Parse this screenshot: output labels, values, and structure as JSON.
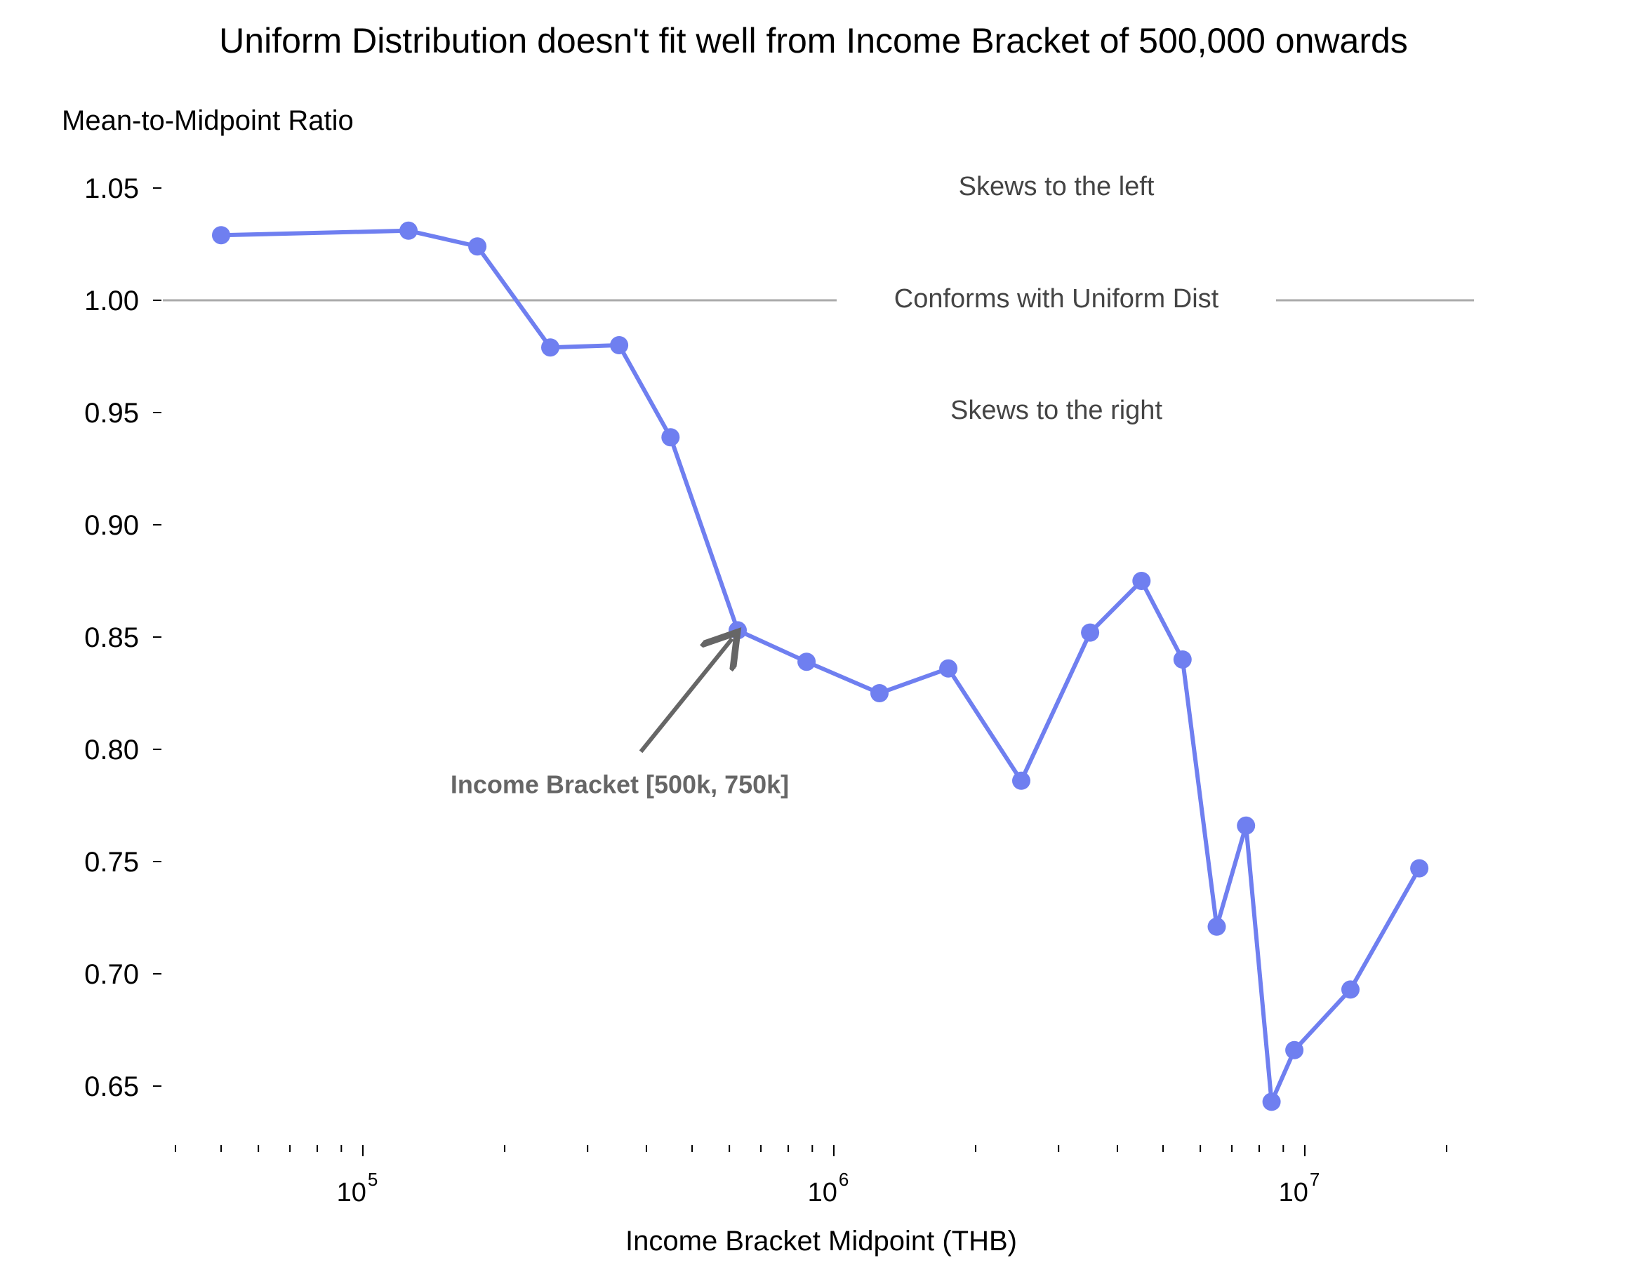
{
  "chart_data": {
    "type": "line",
    "title": "Uniform Distribution doesn't fit well from Income Bracket of 500,000 onwards",
    "xlabel": "Income Bracket Midpoint (THB)",
    "ylabel": "Mean-to-Midpoint Ratio",
    "x_scale": "log",
    "xlim": [
      40000,
      22000000
    ],
    "ylim": [
      0.625,
      1.068
    ],
    "grid": false,
    "legend": "none",
    "line_color": "#6f7ff0",
    "reference_line_color": "#aaaaaa",
    "yticks": [
      {
        "value": 0.65,
        "label": "0.65"
      },
      {
        "value": 0.7,
        "label": "0.70"
      },
      {
        "value": 0.75,
        "label": "0.75"
      },
      {
        "value": 0.8,
        "label": "0.80"
      },
      {
        "value": 0.85,
        "label": "0.85"
      },
      {
        "value": 0.9,
        "label": "0.90"
      },
      {
        "value": 0.95,
        "label": "0.95"
      },
      {
        "value": 1.0,
        "label": "1.00"
      },
      {
        "value": 1.05,
        "label": "1.05"
      }
    ],
    "xticks_major": [
      {
        "value": 100000,
        "base": "10",
        "exp": "5"
      },
      {
        "value": 1000000,
        "base": "10",
        "exp": "6"
      },
      {
        "value": 10000000,
        "base": "10",
        "exp": "7"
      }
    ],
    "xticks_minor": [
      40000,
      50000,
      60000,
      70000,
      80000,
      90000,
      200000,
      300000,
      400000,
      500000,
      600000,
      700000,
      800000,
      900000,
      2000000,
      3000000,
      4000000,
      5000000,
      6000000,
      7000000,
      8000000,
      9000000,
      20000000
    ],
    "x": [
      50000,
      125000,
      175000,
      250000,
      350000,
      450000,
      625000,
      875000,
      1250000,
      1750000,
      2500000,
      3500000,
      4500000,
      5500000,
      6500000,
      7500000,
      8500000,
      9500000,
      12500000,
      17500000
    ],
    "y": [
      1.029,
      1.031,
      1.024,
      0.979,
      0.98,
      0.939,
      0.853,
      0.839,
      0.825,
      0.836,
      0.786,
      0.852,
      0.875,
      0.84,
      0.721,
      0.766,
      0.643,
      0.666,
      0.693,
      0.747
    ],
    "reference_line": {
      "y": 1.0,
      "label": "Conforms with Uniform Dist"
    },
    "region_labels": {
      "above": "Skews to the left",
      "below": "Skews to the right"
    },
    "annotation": {
      "text": "Income Bracket [500k, 750k]",
      "target_x": 625000,
      "target_y": 0.853
    }
  }
}
